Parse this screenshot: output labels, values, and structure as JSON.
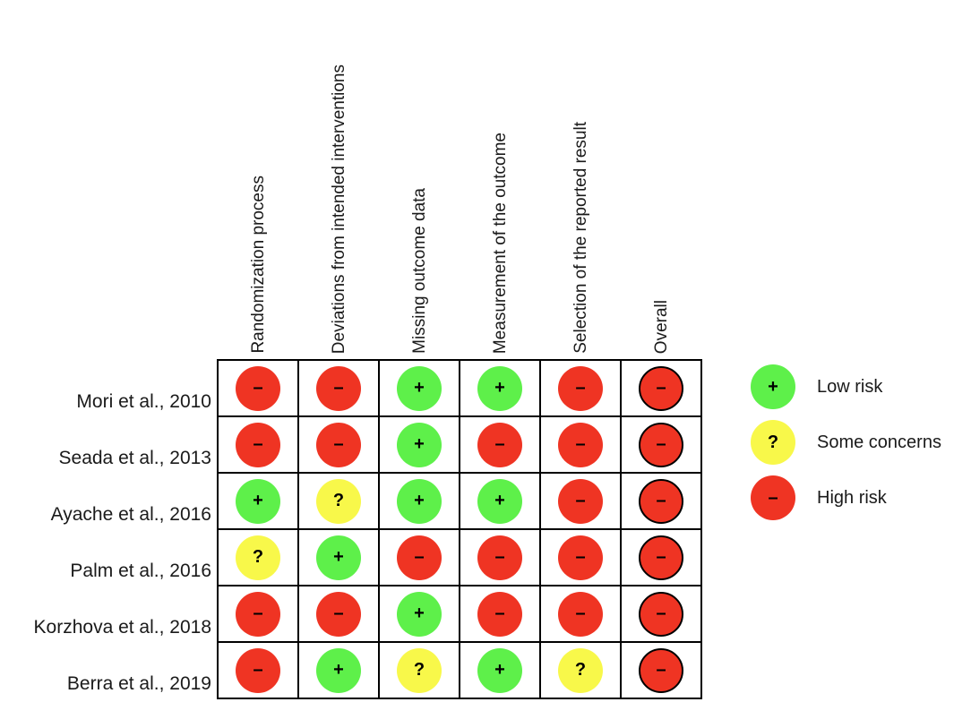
{
  "domains": [
    "Randomization process",
    "Deviations from intended interventions",
    "Missing outcome data",
    "Measurement of the outcome",
    "Selection of the reported result",
    "Overall"
  ],
  "studies": [
    {
      "name": "Mori et al., 2010",
      "judgements": [
        "high",
        "high",
        "low",
        "low",
        "high",
        "high"
      ]
    },
    {
      "name": "Seada et al., 2013",
      "judgements": [
        "high",
        "high",
        "low",
        "high",
        "high",
        "high"
      ]
    },
    {
      "name": "Ayache et al., 2016",
      "judgements": [
        "low",
        "some",
        "low",
        "low",
        "high",
        "high"
      ]
    },
    {
      "name": "Palm et al., 2016",
      "judgements": [
        "some",
        "low",
        "high",
        "high",
        "high",
        "high"
      ]
    },
    {
      "name": "Korzhova et al., 2018",
      "judgements": [
        "high",
        "high",
        "low",
        "high",
        "high",
        "high"
      ]
    },
    {
      "name": "Berra et al., 2019",
      "judgements": [
        "high",
        "low",
        "some",
        "low",
        "some",
        "high"
      ]
    }
  ],
  "legend": [
    {
      "key": "low",
      "label": "Low risk",
      "symbol": "+",
      "color": "#5ef04a",
      "icon": "plus-icon"
    },
    {
      "key": "some",
      "label": "Some concerns",
      "symbol": "?",
      "color": "#f8f84a",
      "icon": "question-icon"
    },
    {
      "key": "high",
      "label": "High risk",
      "symbol": "–",
      "color": "#ef3423",
      "icon": "minus-icon"
    }
  ]
}
